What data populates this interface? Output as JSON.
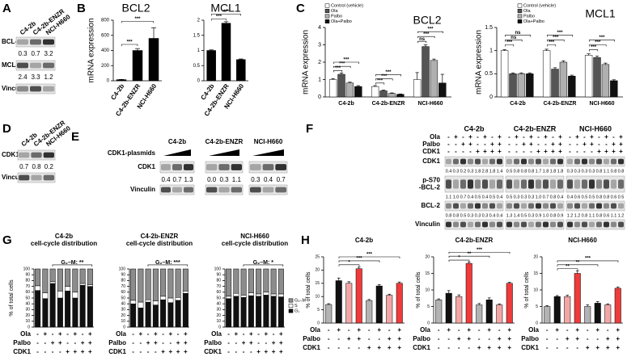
{
  "panel_labels": [
    "A",
    "B",
    "C",
    "D",
    "E",
    "F",
    "G",
    "H"
  ],
  "blot_A": {
    "lanes": [
      "C4-2b",
      "C4-2b-ENZR",
      "NCI-H660"
    ],
    "rows": [
      {
        "label": "BCL-2",
        "quant": [
          "0.3",
          "0.7",
          "3.2"
        ]
      },
      {
        "label": "MCL-1",
        "quant": [
          "2.4",
          "3.3",
          "1.2"
        ]
      },
      {
        "label": "Vinculin"
      }
    ]
  },
  "blot_D": {
    "lanes": [
      "C4-2b",
      "C4-2b-ENZR",
      "NCI-H660"
    ],
    "rows": [
      {
        "label": "CDK1",
        "quant": [
          "0.7",
          "0.8",
          "0.2"
        ]
      },
      {
        "label": "Vinculin"
      }
    ]
  },
  "blot_E": {
    "groups": [
      "C4-2b",
      "C4-2b-ENZR",
      "NCI-H660"
    ],
    "treatment": "CDK1-plasmids",
    "rows": [
      {
        "label": "CDK1",
        "quant": [
          [
            "0.4",
            "0.7",
            "1.3"
          ],
          [
            "0.0",
            "0.3",
            "1.1"
          ],
          [
            "0.3",
            "0.4",
            "0.7"
          ]
        ]
      },
      {
        "label": "Vinculin"
      }
    ]
  },
  "blot_F": {
    "groups": [
      "C4-2b",
      "C4-2b-ENZR",
      "NCI-H660"
    ],
    "conditions": {
      "rows": [
        "Ola",
        "Palbo",
        "CDK1"
      ],
      "signs": [
        [
          "-",
          "+",
          "-",
          "+",
          "-",
          "+",
          "-",
          "+"
        ],
        [
          "-",
          "-",
          "+",
          "+",
          "-",
          "-",
          "+",
          "+"
        ],
        [
          "-",
          "-",
          "-",
          "-",
          "+",
          "+",
          "+",
          "+"
        ]
      ]
    },
    "rows": [
      {
        "label": [
          "CDK1"
        ],
        "quant": [
          [
            "0.4",
            "0.3",
            "0.2",
            "0.3",
            "1.8",
            "2.8",
            "1.8",
            "1.4"
          ],
          [
            "0.5",
            "0.8",
            "0.8",
            "0.8",
            "1.7",
            "1.8",
            "1.8",
            "1.8"
          ],
          [
            "0.3",
            "0.3",
            "0.3",
            "0.3",
            "0.8",
            "1.1",
            "0.8",
            "0.8"
          ]
        ]
      },
      {
        "label": [
          "p-S70",
          "-BCL-2"
        ],
        "quant": [
          [
            "1.1",
            "1.0",
            "0.7",
            "0.4",
            "0.5",
            "0.4",
            "0.5",
            "0.4"
          ],
          [
            "0.5",
            "0.3",
            "0.3",
            "0.3",
            "1.0",
            "0.7",
            "0.8",
            "0.4"
          ],
          [
            "0.4",
            "0.6",
            "0.5",
            "0.5",
            "0.8",
            "0.8",
            "0.6",
            "0.5"
          ]
        ]
      },
      {
        "label": [
          "BCL-2"
        ],
        "quant": [
          [
            "0.8",
            "0.8",
            "0.5",
            "0.3",
            "0.3",
            "0.3",
            "0.4",
            "0.4"
          ],
          [
            "1.3",
            "1.4",
            "0.5",
            "0.3",
            "0.9",
            "1.0",
            "0.8",
            "0.9"
          ],
          [
            "1.2",
            "1.2",
            "0.8",
            "1.1",
            "0.8",
            "0.6",
            "1.1",
            "1.2"
          ]
        ]
      },
      {
        "label": [
          "Vinculin"
        ]
      }
    ]
  },
  "chart_data": [
    {
      "type": "bar",
      "title": "BCL2",
      "ylabel": "mRNA expression",
      "categories": [
        "C4-2b",
        "C4-2b-ENZR",
        "NCI-H660"
      ],
      "values": [
        15,
        400,
        560
      ],
      "errors": [
        3,
        25,
        140
      ],
      "color": "#000000",
      "ylim": [
        0,
        800
      ],
      "yticks": [
        0,
        200,
        400,
        600,
        800
      ],
      "annotations": [
        "***",
        "***"
      ]
    },
    {
      "type": "bar",
      "title": "MCL1",
      "categories": [
        "C4-2b",
        "C4-2b-ENZR",
        "NCI-H660"
      ],
      "values": [
        1.0,
        1.9,
        0.7
      ],
      "errors": [
        0.02,
        0.05,
        0.02
      ],
      "color": "#000000",
      "ylim": [
        0,
        2.0
      ],
      "yticks": [
        0,
        0.5,
        1.0,
        1.5,
        2.0
      ],
      "annotations": [
        "***",
        "***"
      ]
    },
    {
      "type": "grouped_bar",
      "title": "BCL2",
      "ylabel": "mRNA expression",
      "categories": [
        "C4-2b",
        "C4-2b-ENZR",
        "NCI-H660"
      ],
      "series": [
        {
          "name": "Control (vehicle)",
          "color": "#ffffff",
          "values": [
            1.0,
            0.6,
            1.0
          ],
          "errors": [
            0.05,
            0.05,
            0.4
          ]
        },
        {
          "name": "Ola",
          "color": "#555555",
          "values": [
            1.3,
            0.35,
            2.9
          ],
          "errors": [
            0.08,
            0.04,
            0.1
          ]
        },
        {
          "name": "Palbo",
          "color": "#b0b0b0",
          "values": [
            0.8,
            0.2,
            2.1
          ],
          "errors": [
            0.05,
            0.03,
            0.08
          ]
        },
        {
          "name": "Ola+Palbo",
          "color": "#111111",
          "values": [
            0.6,
            0.15,
            0.8
          ],
          "errors": [
            0.05,
            0.02,
            0.5
          ]
        }
      ],
      "ylim": [
        0,
        4
      ],
      "yticks": [
        0,
        1,
        2,
        3,
        4
      ],
      "annotations": [
        "***",
        "***",
        "***",
        "***",
        "***",
        "***",
        "ns",
        "***",
        "***"
      ]
    },
    {
      "type": "grouped_bar",
      "title": "MCL1",
      "ylabel": "mRNA expression",
      "categories": [
        "C4-2b",
        "C4-2b-ENZR",
        "NCI-H660"
      ],
      "series": [
        {
          "name": "Control (vehicle)",
          "color": "#ffffff",
          "values": [
            1.0,
            1.0,
            0.9
          ],
          "errors": [
            0.02,
            0.03,
            0.03
          ]
        },
        {
          "name": "Ola",
          "color": "#555555",
          "values": [
            0.5,
            0.6,
            0.85
          ],
          "errors": [
            0.02,
            0.03,
            0.03
          ]
        },
        {
          "name": "Palbo",
          "color": "#b0b0b0",
          "values": [
            0.5,
            0.75,
            0.7
          ],
          "errors": [
            0.02,
            0.03,
            0.03
          ]
        },
        {
          "name": "Ola+Palbo",
          "color": "#111111",
          "values": [
            0.5,
            0.45,
            0.35
          ],
          "errors": [
            0.02,
            0.02,
            0.02
          ]
        }
      ],
      "ylim": [
        0,
        1.5
      ],
      "yticks": [
        0,
        0.5,
        1.0,
        1.5
      ],
      "annotations": [
        "***",
        "ns",
        "ns",
        "***",
        "***",
        "***",
        "***",
        "***",
        "***"
      ]
    },
    {
      "type": "stacked_bar",
      "title": "C4-2b",
      "subtitle": "cell-cycle distribution",
      "ylabel": "% of total cells",
      "series": [
        {
          "name": "G₁",
          "color": "#111111",
          "values": [
            63,
            49,
            75,
            50,
            62,
            50,
            72,
            70
          ]
        },
        {
          "name": "S",
          "color": "#ffffff",
          "values": [
            8,
            10,
            3,
            12,
            8,
            10,
            3,
            3
          ]
        },
        {
          "name": "G₂–M",
          "color": "#8c8c8c",
          "values": [
            29,
            41,
            22,
            38,
            30,
            40,
            25,
            27
          ]
        }
      ],
      "ylim": [
        0,
        100
      ],
      "yticks": [
        0,
        10,
        20,
        30,
        40,
        50,
        60,
        70,
        80,
        90,
        100
      ],
      "annotations": [
        "G₂–M: **"
      ],
      "conditions": {
        "rows": [
          "Ola",
          "Palbo",
          "CDK1"
        ],
        "signs": [
          [
            "-",
            "+",
            "-",
            "+",
            "-",
            "+",
            "-",
            "+"
          ],
          [
            "-",
            "-",
            "+",
            "+",
            "-",
            "-",
            "+",
            "+"
          ],
          [
            "-",
            "-",
            "-",
            "-",
            "+",
            "+",
            "+",
            "+"
          ]
        ]
      }
    },
    {
      "type": "stacked_bar",
      "title": "C4-2b-ENZR",
      "subtitle": "cell-cycle distribution",
      "series": [
        {
          "name": "G₁",
          "color": "#111111",
          "values": [
            40,
            33,
            43,
            38,
            47,
            42,
            46,
            58
          ]
        },
        {
          "name": "S",
          "color": "#ffffff",
          "values": [
            6,
            10,
            4,
            7,
            6,
            8,
            5,
            4
          ]
        },
        {
          "name": "G₂–M",
          "color": "#8c8c8c",
          "values": [
            54,
            57,
            53,
            55,
            47,
            50,
            49,
            38
          ]
        }
      ],
      "ylim": [
        0,
        100
      ],
      "yticks": [
        0,
        10,
        20,
        30,
        40,
        50,
        60,
        70,
        80,
        90,
        100
      ],
      "annotations": [
        "G₂–M: ***"
      ],
      "conditions": {
        "rows": [
          "Ola",
          "Palbo",
          "CDK1"
        ],
        "signs": [
          [
            "-",
            "+",
            "-",
            "+",
            "-",
            "+",
            "-",
            "+"
          ],
          [
            "-",
            "-",
            "+",
            "+",
            "-",
            "-",
            "+",
            "+"
          ],
          [
            "-",
            "-",
            "-",
            "-",
            "+",
            "+",
            "+",
            "+"
          ]
        ]
      }
    },
    {
      "type": "stacked_bar",
      "title": "NCI-H660",
      "subtitle": "cell-cycle distribution",
      "series": [
        {
          "name": "G₁",
          "color": "#111111",
          "values": [
            49,
            53,
            51,
            54,
            53,
            55,
            53,
            52
          ]
        },
        {
          "name": "S",
          "color": "#ffffff",
          "values": [
            4,
            5,
            4,
            5,
            4,
            5,
            4,
            5
          ]
        },
        {
          "name": "G₂–M",
          "color": "#8c8c8c",
          "values": [
            47,
            42,
            45,
            41,
            43,
            40,
            43,
            43
          ]
        }
      ],
      "ylim": [
        0,
        100
      ],
      "yticks": [
        0,
        10,
        20,
        30,
        40,
        50,
        60,
        70,
        80,
        90,
        100
      ],
      "annotations": [
        "G₂–M: *"
      ],
      "conditions": {
        "rows": [
          "Ola",
          "Palbo",
          "CDK1"
        ],
        "signs": [
          [
            "-",
            "+",
            "-",
            "+",
            "-",
            "+",
            "-",
            "+"
          ],
          [
            "-",
            "-",
            "+",
            "+",
            "-",
            "-",
            "+",
            "+"
          ],
          [
            "-",
            "-",
            "-",
            "-",
            "+",
            "+",
            "+",
            "+"
          ]
        ]
      }
    },
    {
      "type": "bar",
      "title": "C4-2b",
      "ylabel": "% of total cells",
      "values": [
        7,
        16,
        15,
        20.5,
        8.5,
        14,
        10.5,
        15
      ],
      "errors": [
        0.3,
        1.0,
        0.6,
        0.6,
        0.4,
        0.5,
        0.4,
        0.5
      ],
      "colors": [
        "#b3b3b3",
        "#111111",
        "#f4a6a6",
        "#ef3b3b",
        "#b3b3b3",
        "#111111",
        "#f4a6a6",
        "#ef3b3b"
      ],
      "ylim": [
        0,
        25
      ],
      "yticks": [
        0,
        5,
        10,
        15,
        20,
        25
      ],
      "annotations": [
        "*",
        "***",
        "***"
      ],
      "conditions": {
        "rows": [
          "Ola",
          "Palbo",
          "CDK1"
        ],
        "signs": [
          [
            "-",
            "+",
            "-",
            "+",
            "-",
            "+",
            "-",
            "+"
          ],
          [
            "-",
            "-",
            "+",
            "+",
            "-",
            "-",
            "+",
            "+"
          ],
          [
            "-",
            "-",
            "-",
            "-",
            "+",
            "+",
            "+",
            "+"
          ]
        ]
      }
    },
    {
      "type": "bar",
      "title": "C4-2b-ENZR",
      "ylabel": "% of total cells",
      "values": [
        7,
        9,
        8,
        18,
        5.5,
        7,
        5.5,
        12
      ],
      "errors": [
        0.3,
        0.8,
        0.5,
        0.4,
        0.4,
        0.6,
        0.3,
        0.3
      ],
      "colors": [
        "#b3b3b3",
        "#111111",
        "#f4a6a6",
        "#ef3b3b",
        "#b3b3b3",
        "#111111",
        "#f4a6a6",
        "#ef3b3b"
      ],
      "ylim": [
        0,
        20
      ],
      "yticks": [
        0,
        5,
        10,
        15,
        20
      ],
      "annotations": [
        "*",
        "**",
        "***"
      ],
      "conditions": {
        "rows": [
          "Ola",
          "Palbo",
          "CDK1"
        ],
        "signs": [
          [
            "-",
            "+",
            "-",
            "+",
            "-",
            "+",
            "-",
            "+"
          ],
          [
            "-",
            "-",
            "+",
            "+",
            "-",
            "-",
            "+",
            "+"
          ],
          [
            "-",
            "-",
            "-",
            "-",
            "+",
            "+",
            "+",
            "+"
          ]
        ]
      }
    },
    {
      "type": "bar",
      "title": "NCI-H660",
      "ylabel": "% of total cells",
      "values": [
        5,
        8,
        8,
        15,
        5,
        6,
        5.5,
        10.5
      ],
      "errors": [
        0.3,
        0.3,
        0.4,
        0.8,
        0.5,
        0.5,
        0.3,
        0.4
      ],
      "colors": [
        "#b3b3b3",
        "#111111",
        "#f4a6a6",
        "#ef3b3b",
        "#b3b3b3",
        "#111111",
        "#f4a6a6",
        "#ef3b3b"
      ],
      "ylim": [
        0,
        20
      ],
      "yticks": [
        0,
        5,
        10,
        15,
        20
      ],
      "annotations": [
        "**",
        "**",
        "***"
      ],
      "conditions": {
        "rows": [
          "Ola",
          "Palbo",
          "CDK1"
        ],
        "signs": [
          [
            "-",
            "+",
            "-",
            "+",
            "-",
            "+",
            "-",
            "+"
          ],
          [
            "-",
            "-",
            "+",
            "+",
            "-",
            "-",
            "+",
            "+"
          ],
          [
            "-",
            "-",
            "-",
            "-",
            "+",
            "+",
            "+",
            "+"
          ]
        ]
      }
    }
  ]
}
